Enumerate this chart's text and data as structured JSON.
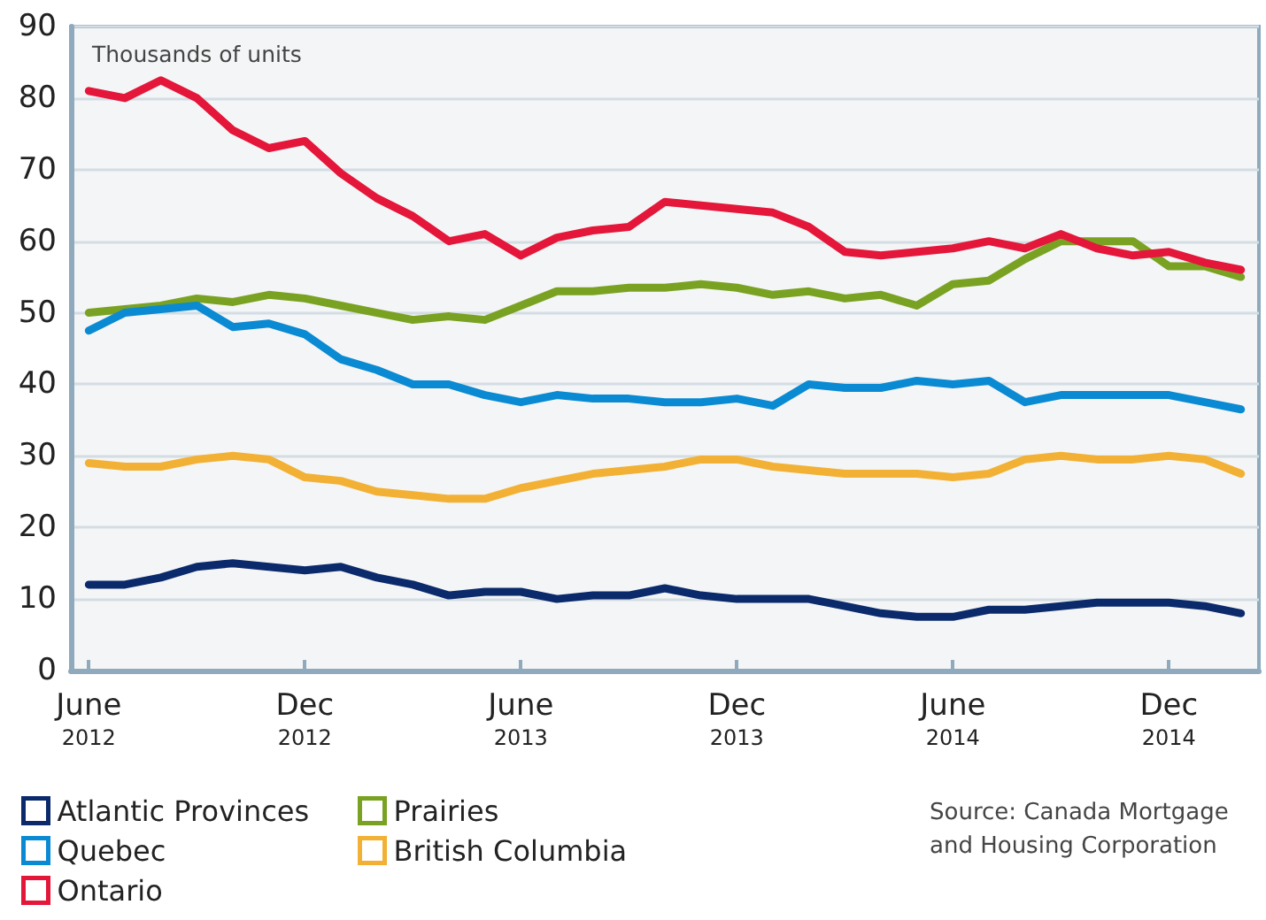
{
  "chart_data": {
    "type": "line",
    "ylabel": "Thousands of units",
    "categories": [
      "June\n2012",
      null,
      null,
      null,
      null,
      null,
      "Dec\n2012",
      null,
      null,
      null,
      null,
      null,
      "June\n2013",
      null,
      null,
      null,
      null,
      null,
      "Dec\n2013",
      null,
      null,
      null,
      null,
      null,
      "June\n2014",
      null,
      null,
      null,
      null,
      null,
      "Dec\n2014",
      null,
      null
    ],
    "series": [
      {
        "name": "Atlantic Provinces",
        "color": "#0b2a6b",
        "values": [
          12,
          12,
          13,
          14.5,
          15,
          14.5,
          14,
          14.5,
          13,
          12,
          10.5,
          11,
          11,
          10,
          10.5,
          10.5,
          11.5,
          10.5,
          10,
          10,
          10,
          9,
          8,
          7.5,
          7.5,
          8.5,
          8.5,
          9,
          9.5,
          9.5,
          9.5,
          9,
          8
        ]
      },
      {
        "name": "Prairies",
        "color": "#7aa222",
        "values": [
          50,
          50.5,
          51,
          52,
          51.5,
          52.5,
          52,
          51,
          50,
          49,
          49.5,
          49,
          51,
          53,
          53,
          53.5,
          53.5,
          54,
          53.5,
          52.5,
          53,
          52,
          52.5,
          51,
          54,
          54.5,
          57.5,
          60,
          60,
          60,
          56.5,
          56.5,
          55
        ]
      },
      {
        "name": "Quebec",
        "color": "#0a8ad2",
        "values": [
          47.5,
          50,
          50.5,
          51,
          48,
          48.5,
          47,
          43.5,
          42,
          40,
          40,
          38.5,
          37.5,
          38.5,
          38,
          38,
          37.5,
          37.5,
          38,
          37,
          40,
          39.5,
          39.5,
          40.5,
          40,
          40.5,
          37.5,
          38.5,
          38.5,
          38.5,
          38.5,
          37.5,
          36.5
        ]
      },
      {
        "name": "British Columbia",
        "color": "#f2b134",
        "values": [
          29,
          28.5,
          28.5,
          29.5,
          30,
          29.5,
          27,
          26.5,
          25,
          24.5,
          24,
          24,
          25.5,
          26.5,
          27.5,
          28,
          28.5,
          29.5,
          29.5,
          28.5,
          28,
          27.5,
          27.5,
          27.5,
          27,
          27.5,
          29.5,
          30,
          29.5,
          29.5,
          30,
          29.5,
          27.5
        ]
      },
      {
        "name": "Ontario",
        "color": "#e4163a",
        "values": [
          81,
          80,
          82.5,
          80,
          75.5,
          73,
          74,
          69.5,
          66,
          63.5,
          60,
          61,
          58,
          60.5,
          61.5,
          62,
          65.5,
          65,
          64.5,
          64,
          62,
          58.5,
          58,
          58.5,
          59,
          60,
          59,
          61,
          59,
          58,
          58.5,
          57,
          56
        ]
      }
    ],
    "ylim": [
      0,
      90
    ],
    "yticks": [
      0,
      10,
      20,
      30,
      40,
      50,
      60,
      70,
      80,
      90
    ],
    "grid": "y",
    "legend": "bottom left",
    "marker": "none",
    "line_style": "solid",
    "annotations": [
      "Source: Canada Mortgage and Housing Corporation"
    ]
  }
}
